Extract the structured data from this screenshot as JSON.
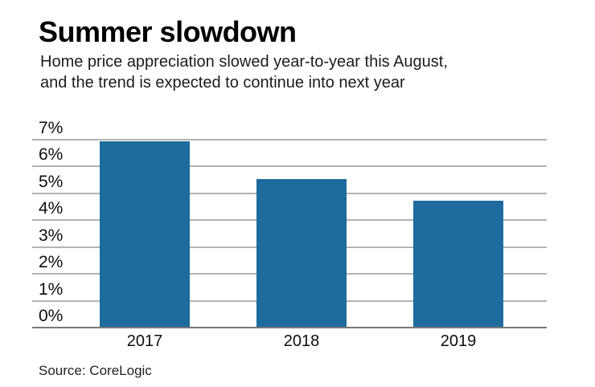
{
  "header": {
    "title": "Summer slowdown",
    "subtitle_lines": [
      "Home price appreciation slowed year-to-year this August,",
      "and the trend is expected to continue into next year"
    ]
  },
  "source": {
    "label": "Source: CoreLogic"
  },
  "colors": {
    "bar": "#1e6b9e",
    "gridline": "#b3b3b3",
    "axis_line": "#787878",
    "title_text": "#000000",
    "subtitle_text": "#1c1c1c"
  },
  "chart_data": {
    "type": "bar",
    "title": "Summer slowdown",
    "subtitle": "Home price appreciation slowed year-to-year this August, and the trend is expected to continue into next year",
    "categories": [
      "2017",
      "2018",
      "2019"
    ],
    "values": [
      6.9,
      5.5,
      4.7
    ],
    "unit": "%",
    "xlabel": "",
    "ylabel": "",
    "ylim": [
      0,
      7
    ],
    "ytick_step": 1,
    "ytick_labels": [
      "0%",
      "1%",
      "2%",
      "3%",
      "4%",
      "5%",
      "6%",
      "7%"
    ],
    "grid": true,
    "legend": false,
    "source": "Source: CoreLogic"
  }
}
